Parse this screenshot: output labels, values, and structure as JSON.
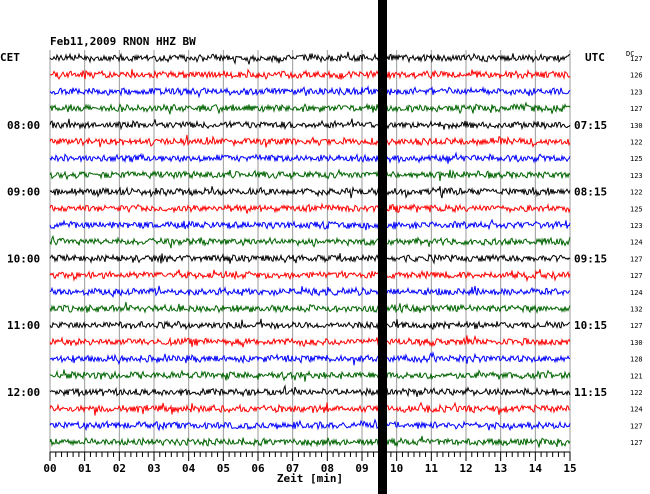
{
  "chart_data": {
    "type": "line",
    "title": "Feb11,2009   RNON HHZ BW",
    "left_timezone": "CET",
    "right_timezone": "UTC",
    "dc_header": "DC",
    "xlabel": "Zeit [min]",
    "xlim": [
      0,
      15
    ],
    "x_ticks": [
      "00",
      "01",
      "02",
      "03",
      "04",
      "05",
      "06",
      "07",
      "08",
      "09",
      "10",
      "11",
      "12",
      "13",
      "14",
      "15"
    ],
    "trace_colors": [
      "#000000",
      "#ff0000",
      "#0000ff",
      "#006400"
    ],
    "traces": [
      {
        "left_label": "",
        "right_label": "",
        "dc": "127",
        "color_index": 0
      },
      {
        "left_label": "",
        "right_label": "",
        "dc": "126",
        "color_index": 1
      },
      {
        "left_label": "",
        "right_label": "",
        "dc": "123",
        "color_index": 2
      },
      {
        "left_label": "",
        "right_label": "",
        "dc": "127",
        "color_index": 3
      },
      {
        "left_label": "08:00",
        "right_label": "07:15",
        "dc": "130",
        "color_index": 0
      },
      {
        "left_label": "",
        "right_label": "",
        "dc": "122",
        "color_index": 1
      },
      {
        "left_label": "",
        "right_label": "",
        "dc": "125",
        "color_index": 2
      },
      {
        "left_label": "",
        "right_label": "",
        "dc": "123",
        "color_index": 3
      },
      {
        "left_label": "09:00",
        "right_label": "08:15",
        "dc": "122",
        "color_index": 0
      },
      {
        "left_label": "",
        "right_label": "",
        "dc": "125",
        "color_index": 1
      },
      {
        "left_label": "",
        "right_label": "",
        "dc": "123",
        "color_index": 2
      },
      {
        "left_label": "",
        "right_label": "",
        "dc": "124",
        "color_index": 3
      },
      {
        "left_label": "10:00",
        "right_label": "09:15",
        "dc": "127",
        "color_index": 0
      },
      {
        "left_label": "",
        "right_label": "",
        "dc": "127",
        "color_index": 1
      },
      {
        "left_label": "",
        "right_label": "",
        "dc": "124",
        "color_index": 2
      },
      {
        "left_label": "",
        "right_label": "",
        "dc": "132",
        "color_index": 3
      },
      {
        "left_label": "11:00",
        "right_label": "10:15",
        "dc": "127",
        "color_index": 0
      },
      {
        "left_label": "",
        "right_label": "",
        "dc": "130",
        "color_index": 1
      },
      {
        "left_label": "",
        "right_label": "",
        "dc": "128",
        "color_index": 2
      },
      {
        "left_label": "",
        "right_label": "",
        "dc": "121",
        "color_index": 3
      },
      {
        "left_label": "12:00",
        "right_label": "11:15",
        "dc": "122",
        "color_index": 0
      },
      {
        "left_label": "",
        "right_label": "",
        "dc": "124",
        "color_index": 1
      },
      {
        "left_label": "",
        "right_label": "",
        "dc": "127",
        "color_index": 2
      },
      {
        "left_label": "",
        "right_label": "",
        "dc": "127",
        "color_index": 3
      }
    ],
    "grid": true
  }
}
